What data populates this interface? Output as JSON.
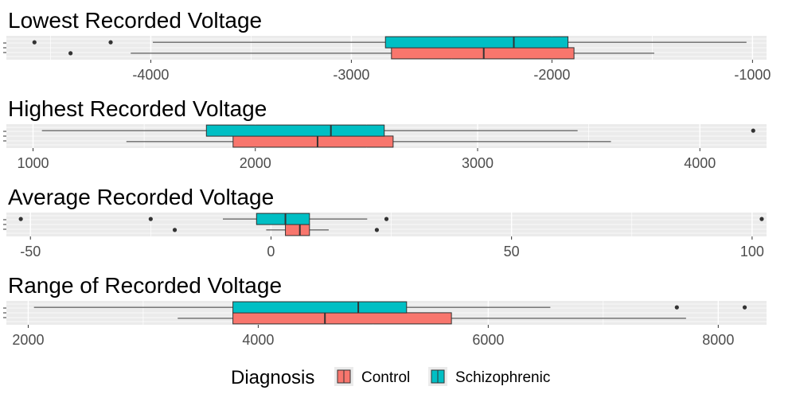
{
  "chart_data": {
    "type": "boxplot",
    "orientation": "horizontal",
    "legend": {
      "title": "Diagnosis",
      "placement": "bottom",
      "entries": [
        {
          "name": "Control",
          "color": "#F8766D"
        },
        {
          "name": "Schizophrenic",
          "color": "#00BFC4"
        }
      ]
    },
    "colors": {
      "Control": "#F8766D",
      "Schizophrenic": "#00BFC4",
      "panel_bg": "#EBEBEB",
      "grid": "#FFFFFF"
    },
    "panels": [
      {
        "title": "Lowest Recorded Voltage",
        "xlim": [
          -4720,
          -930
        ],
        "ticks": [
          -4000,
          -3000,
          -2000,
          -1000
        ],
        "tick_labels": [
          "-4000",
          "-3000",
          "-2000",
          "-1000"
        ],
        "series": [
          {
            "name": "Control",
            "whisker_low": -4100,
            "q1": -2800,
            "median": -2340,
            "q3": -1890,
            "whisker_high": -1490,
            "outliers": [
              -4400
            ]
          },
          {
            "name": "Schizophrenic",
            "whisker_low": -3990,
            "q1": -2830,
            "median": -2190,
            "q3": -1920,
            "whisker_high": -1030,
            "outliers": [
              -4580,
              -4200
            ]
          }
        ]
      },
      {
        "title": "Highest Recorded Voltage",
        "xlim": [
          880,
          4300
        ],
        "ticks": [
          1000,
          2000,
          3000,
          4000
        ],
        "tick_labels": [
          "1000",
          "2000",
          "3000",
          "4000"
        ],
        "series": [
          {
            "name": "Control",
            "whisker_low": 1420,
            "q1": 1900,
            "median": 2280,
            "q3": 2620,
            "whisker_high": 3600,
            "outliers": []
          },
          {
            "name": "Schizophrenic",
            "whisker_low": 1040,
            "q1": 1780,
            "median": 2340,
            "q3": 2580,
            "whisker_high": 3450,
            "outliers": [
              4240
            ]
          }
        ]
      },
      {
        "title": "Average Recorded Voltage",
        "xlim": [
          -55,
          103
        ],
        "ticks": [
          -50,
          0,
          50,
          100
        ],
        "tick_labels": [
          "-50",
          "0",
          "50",
          "100"
        ],
        "series": [
          {
            "name": "Control",
            "whisker_low": -1,
            "q1": 3,
            "median": 6,
            "q3": 8,
            "whisker_high": 12,
            "outliers": [
              -20,
              22
            ]
          },
          {
            "name": "Schizophrenic",
            "whisker_low": -10,
            "q1": -3,
            "median": 3,
            "q3": 8,
            "whisker_high": 20,
            "outliers": [
              -52,
              -25,
              24,
              102
            ]
          }
        ]
      },
      {
        "title": "Range of Recorded Voltage",
        "xlim": [
          1810,
          8420
        ],
        "ticks": [
          2000,
          4000,
          6000,
          8000
        ],
        "tick_labels": [
          "2000",
          "4000",
          "6000",
          "8000"
        ],
        "series": [
          {
            "name": "Control",
            "whisker_low": 3300,
            "q1": 3780,
            "median": 4580,
            "q3": 5680,
            "whisker_high": 7720,
            "outliers": []
          },
          {
            "name": "Schizophrenic",
            "whisker_low": 2050,
            "q1": 3780,
            "median": 4870,
            "q3": 5290,
            "whisker_high": 6540,
            "outliers": [
              7640,
              8230
            ]
          }
        ]
      }
    ]
  }
}
